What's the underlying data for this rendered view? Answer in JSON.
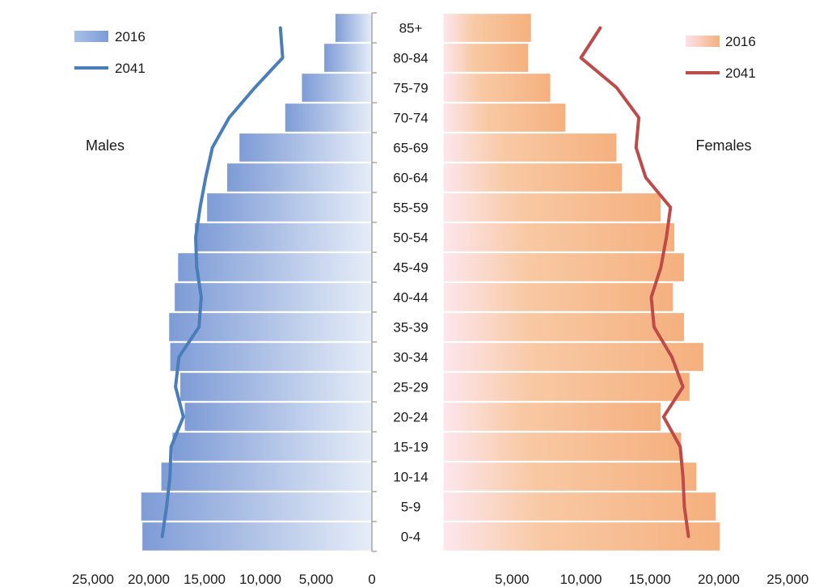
{
  "chart_data": {
    "type": "bar",
    "title": "",
    "categories": [
      "0-4",
      "5-9",
      "10-14",
      "15-19",
      "20-24",
      "25-29",
      "30-34",
      "35-39",
      "40-44",
      "45-49",
      "50-54",
      "55-59",
      "60-64",
      "65-69",
      "70-74",
      "75-79",
      "80-84",
      "85+"
    ],
    "males": {
      "label": "Males",
      "xlim": [
        25000,
        0
      ],
      "ticks": [
        "25,000",
        "20,000",
        "15,000",
        "10,000",
        "5,000",
        "0"
      ],
      "tick_values": [
        25000,
        20000,
        15000,
        10000,
        5000,
        0
      ],
      "series": [
        {
          "name": "2016",
          "kind": "bar",
          "color": "#7f9fd8",
          "values": [
            20600,
            20700,
            18900,
            17900,
            16800,
            17200,
            18100,
            18200,
            17700,
            17400,
            15900,
            14800,
            13000,
            11900,
            7800,
            6300,
            4300,
            3300
          ]
        },
        {
          "name": "2041",
          "kind": "line",
          "color": "#4a7ebb",
          "values": [
            18800,
            18400,
            18100,
            18000,
            16900,
            17600,
            17300,
            15500,
            15300,
            15700,
            15800,
            15400,
            14900,
            14300,
            12800,
            10500,
            8000,
            8200
          ]
        }
      ]
    },
    "females": {
      "label": "Females",
      "xlim": [
        0,
        25000
      ],
      "ticks": [
        "5,000",
        "10,000",
        "15,000",
        "20,000",
        "25,000"
      ],
      "tick_values": [
        5000,
        10000,
        15000,
        20000,
        25000
      ],
      "series": [
        {
          "name": "2016",
          "kind": "bar",
          "color": "#f5b68a",
          "values": [
            20100,
            19800,
            18400,
            17300,
            15800,
            17900,
            18900,
            17500,
            16700,
            17500,
            16800,
            15800,
            13000,
            12600,
            8900,
            7800,
            6200,
            6400
          ]
        },
        {
          "name": "2041",
          "kind": "line",
          "color": "#be4b48",
          "values": [
            17800,
            17500,
            17400,
            17200,
            16000,
            17400,
            16600,
            15300,
            15100,
            15800,
            16200,
            16500,
            14700,
            14000,
            14200,
            12600,
            10000,
            11400
          ]
        }
      ]
    }
  }
}
